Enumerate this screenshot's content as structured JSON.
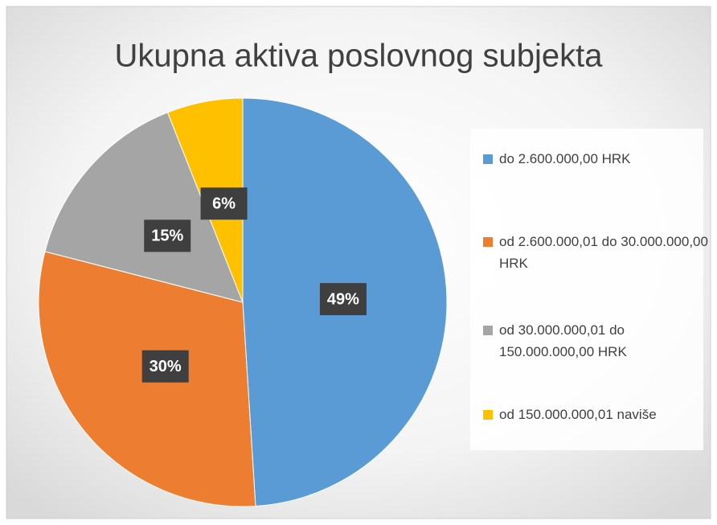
{
  "chart_data": {
    "type": "pie",
    "title": "Ukupna aktiva poslovnog subjekta",
    "categories": [
      "do 2.600.000,00 HRK",
      "od 2.600.000,01 do 30.000.000,00 HRK",
      "od 30.000.000,01 do 150.000.000,00 HRK",
      "od 150.000.000,01 naviše"
    ],
    "values": [
      49,
      30,
      15,
      6
    ],
    "value_labels": [
      "49%",
      "30%",
      "15%",
      "6%"
    ],
    "colors": [
      "#5b9bd5",
      "#ed7d31",
      "#a5a5a5",
      "#ffc000"
    ],
    "legend": "right"
  }
}
